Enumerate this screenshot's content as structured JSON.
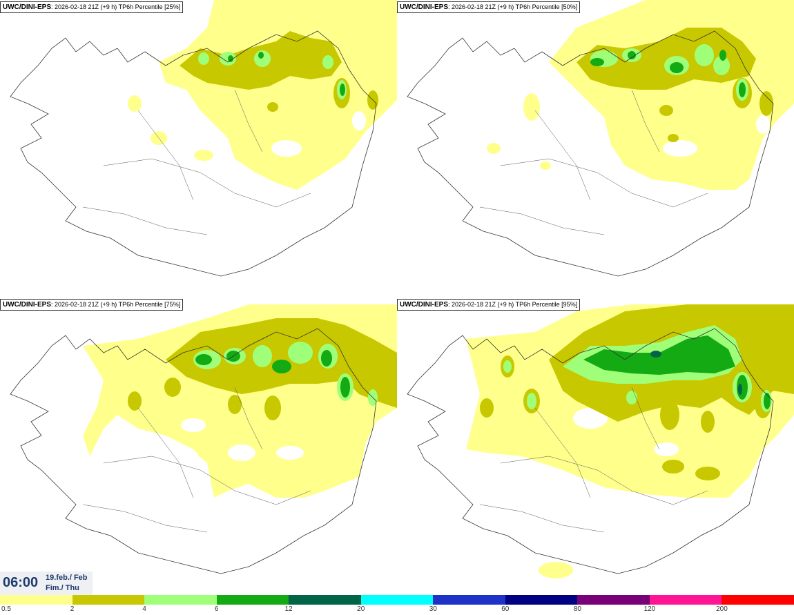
{
  "panels": [
    {
      "model": "UWC/DINI-EPS",
      "info": ": 2026-02-18 21Z (+9 h) TP6h Percentile [25%]"
    },
    {
      "model": "UWC/DINI-EPS",
      "info": ": 2026-02-18 21Z (+9 h) TP6h Percentile [50%]"
    },
    {
      "model": "UWC/DINI-EPS",
      "info": ": 2026-02-18 21Z (+9 h) TP6h Percentile [75%]"
    },
    {
      "model": "UWC/DINI-EPS",
      "info": ": 2026-02-18 21Z (+9 h) TP6h Percentile [95%]"
    }
  ],
  "time": {
    "clock": "06:00",
    "date_line1": "19.feb./ Feb",
    "date_line2": "Fim./ Thu"
  },
  "legend": {
    "colors": [
      "#ffff8c",
      "#c8c800",
      "#a0ff78",
      "#14aa14",
      "#006446",
      "#00ffff",
      "#1e32c8",
      "#000082",
      "#780078",
      "#ff1493",
      "#ff0000"
    ],
    "labels": [
      "0.5",
      "2",
      "4",
      "6",
      "12",
      "20",
      "30",
      "60",
      "80",
      "120",
      "200"
    ]
  },
  "colors": {
    "light_yellow": "#ffff8c",
    "olive": "#c8c800",
    "light_green": "#a0ff78",
    "green": "#14aa14",
    "dark_green": "#006446"
  }
}
